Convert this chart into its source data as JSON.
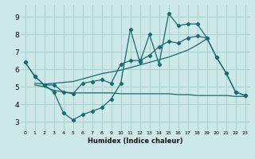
{
  "xlabel": "Humidex (Indice chaleur)",
  "bg_color": "#cce8e8",
  "grid_color": "#a8d0d0",
  "line_color": "#1a6b6b",
  "xlim": [
    -0.5,
    23.5
  ],
  "ylim": [
    2.5,
    9.7
  ],
  "xticks": [
    0,
    1,
    2,
    3,
    4,
    5,
    6,
    7,
    8,
    9,
    10,
    11,
    12,
    13,
    14,
    15,
    16,
    17,
    18,
    19,
    20,
    21,
    22,
    23
  ],
  "yticks": [
    3,
    4,
    5,
    6,
    7,
    8,
    9
  ],
  "line1_x": [
    0,
    1,
    2,
    3,
    4,
    5,
    6,
    7,
    8,
    9,
    10,
    11,
    12,
    13,
    14,
    15,
    16,
    17,
    18,
    19,
    20,
    21,
    22,
    23
  ],
  "line1_y": [
    6.4,
    5.6,
    5.1,
    4.7,
    3.5,
    3.1,
    3.4,
    3.6,
    3.8,
    4.3,
    5.2,
    8.3,
    6.4,
    8.0,
    6.3,
    9.2,
    8.5,
    8.6,
    8.6,
    7.8,
    6.7,
    5.8,
    4.7,
    4.5
  ],
  "line2_x": [
    0,
    1,
    2,
    3,
    4,
    5,
    6,
    7,
    8,
    9,
    10,
    11,
    12,
    13,
    14,
    15,
    16,
    17,
    18,
    19,
    20,
    21,
    22,
    23
  ],
  "line2_y": [
    6.4,
    5.6,
    5.1,
    5.1,
    4.7,
    4.6,
    5.2,
    5.3,
    5.4,
    5.2,
    6.3,
    6.5,
    6.5,
    6.8,
    7.3,
    7.6,
    7.5,
    7.8,
    7.9,
    7.8,
    6.7,
    5.8,
    4.7,
    4.5
  ],
  "line3_x": [
    1,
    2,
    3,
    4,
    5,
    6,
    7,
    8,
    9,
    10,
    11,
    12,
    13,
    14,
    15,
    16,
    17,
    18,
    19
  ],
  "line3_y": [
    5.2,
    5.15,
    5.2,
    5.25,
    5.3,
    5.45,
    5.6,
    5.75,
    5.85,
    5.95,
    6.1,
    6.25,
    6.4,
    6.55,
    6.7,
    6.9,
    7.1,
    7.4,
    7.75
  ],
  "line4_x": [
    1,
    2,
    3,
    4,
    5,
    6,
    7,
    8,
    9,
    10,
    11,
    12,
    13,
    14,
    15,
    16,
    17,
    18,
    19,
    20,
    21,
    22,
    23
  ],
  "line4_y": [
    5.1,
    5.0,
    4.8,
    4.7,
    4.65,
    4.65,
    4.65,
    4.65,
    4.65,
    4.6,
    4.6,
    4.6,
    4.6,
    4.6,
    4.6,
    4.55,
    4.55,
    4.5,
    4.5,
    4.5,
    4.5,
    4.45,
    4.45
  ]
}
